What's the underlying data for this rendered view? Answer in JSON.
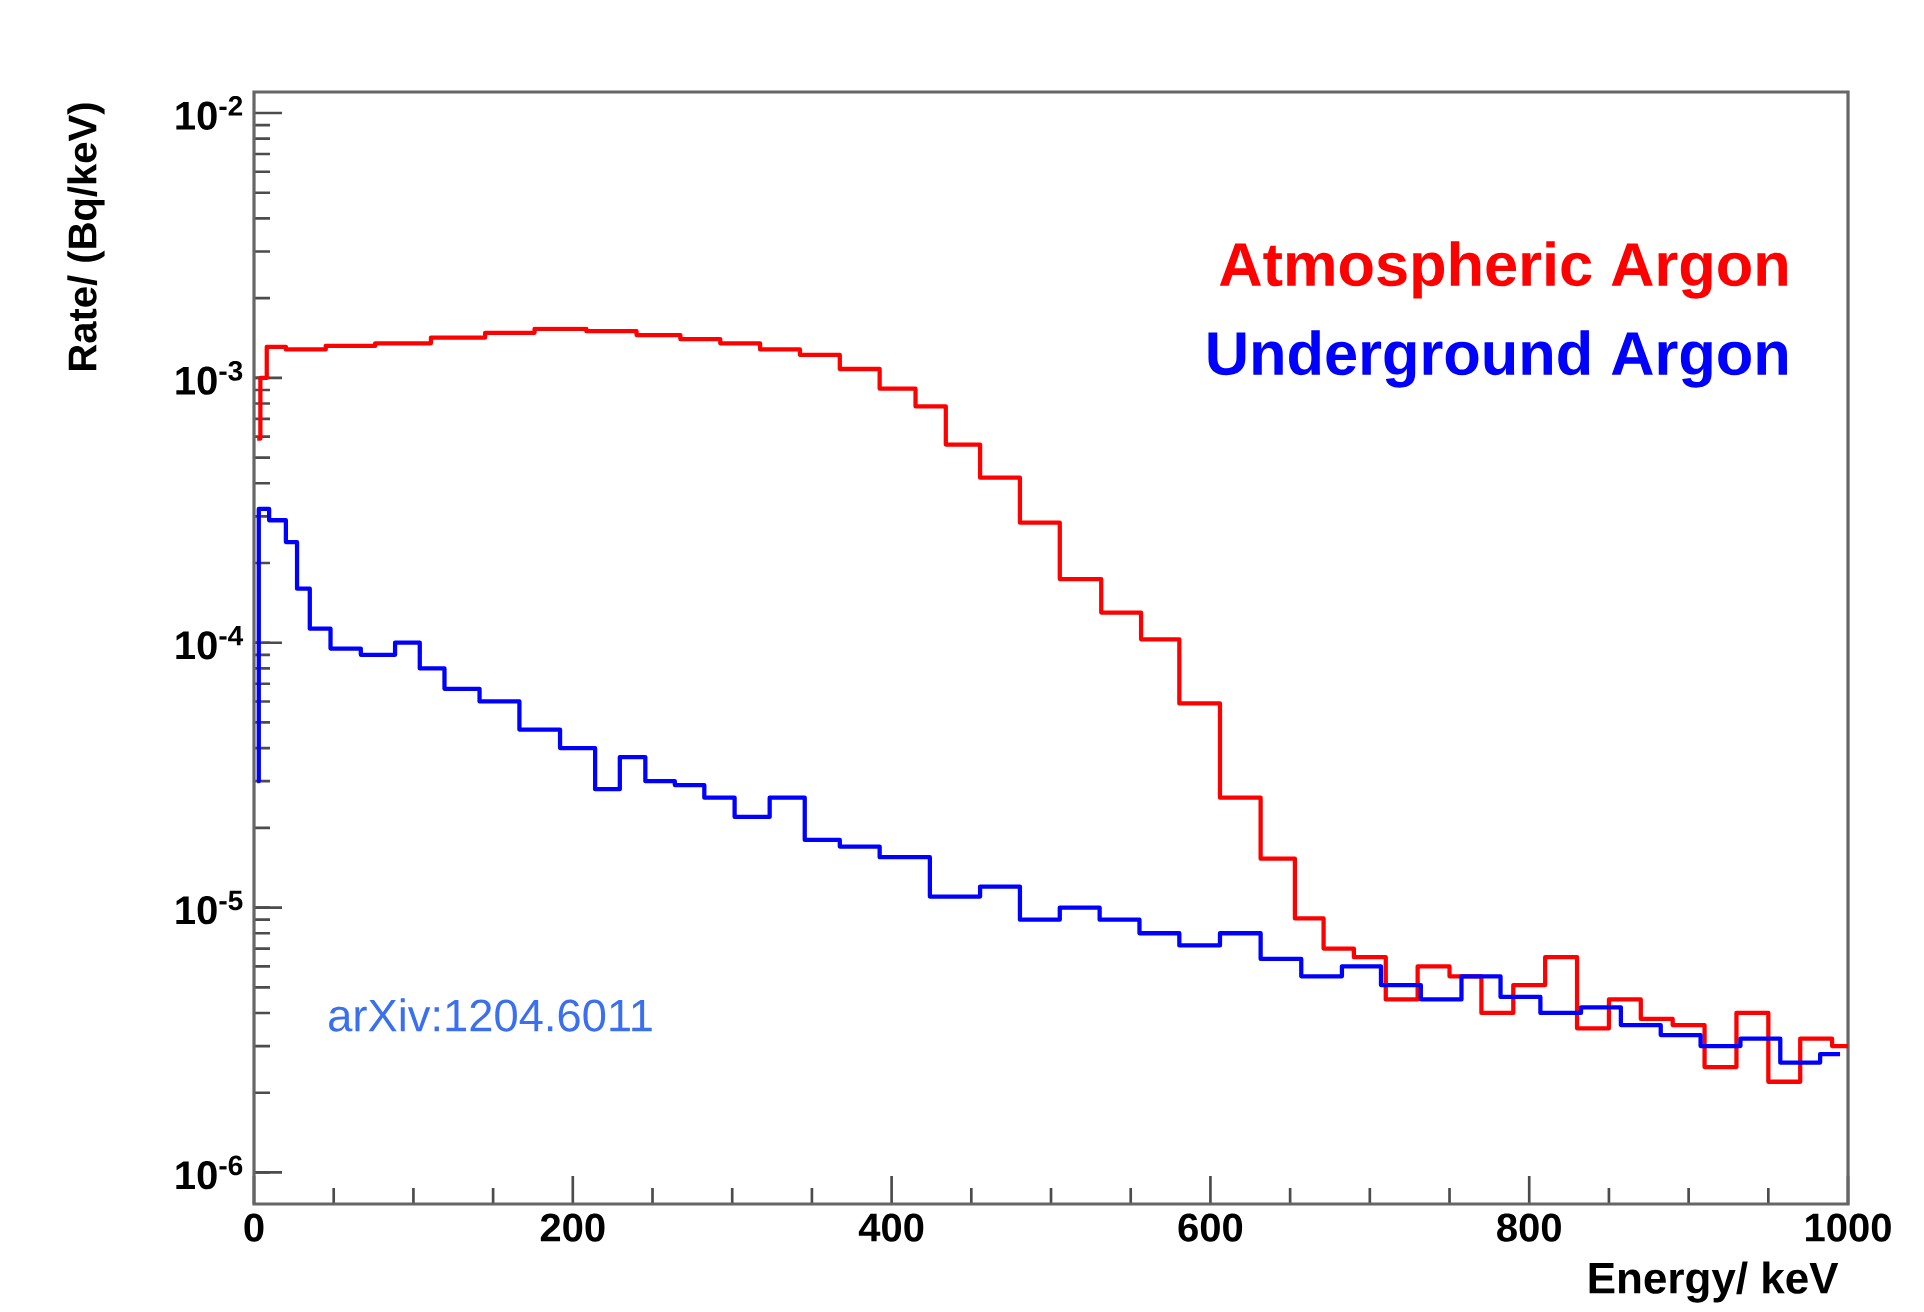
{
  "chart_data": {
    "type": "step",
    "xlabel": "Energy/ keV",
    "ylabel": "Rate/ (Bq/keV)",
    "log": "y",
    "legend": "top right",
    "marker": "none",
    "grid": false,
    "xlim": [
      0,
      1000
    ],
    "ylim": [
      7.6e-07,
      0.012
    ],
    "xticks": [
      0,
      200,
      400,
      600,
      800,
      1000
    ],
    "yticks": [
      {
        "value": 1e-06,
        "label": "10$^{-6}$"
      },
      {
        "value": 1e-05,
        "label": "10$^{-5}$"
      },
      {
        "value": 0.0001,
        "label": "10$^{-4}$"
      },
      {
        "value": 0.001,
        "label": "10$^{-3}$"
      },
      {
        "value": 0.01,
        "label": "10$^{-2}$"
      }
    ],
    "annotations": [
      "arXiv:1204.6011"
    ],
    "series": [
      {
        "name": "Atmospheric Argon",
        "color": "#ff0000",
        "x": [
          2,
          6,
          10,
          30,
          60,
          92,
          130,
          160,
          192,
          225,
          255,
          280,
          305,
          330,
          355,
          380,
          405,
          425,
          443,
          468,
          493,
          518,
          545,
          568,
          593,
          619,
          644,
          662,
          680,
          700,
          720,
          740,
          760,
          780,
          800,
          820,
          840,
          860,
          880,
          900,
          920,
          940,
          960,
          980,
          1000
        ],
        "values": [
          0.00059,
          0.001,
          0.00131,
          0.00128,
          0.00132,
          0.00135,
          0.00142,
          0.00148,
          0.00153,
          0.0015,
          0.00145,
          0.0014,
          0.00135,
          0.00128,
          0.00122,
          0.00108,
          0.00091,
          0.00078,
          0.00056,
          0.00042,
          0.000284,
          0.000174,
          0.00013,
          0.000103,
          5.9e-05,
          2.6e-05,
          1.53e-05,
          9.1e-06,
          7e-06,
          6.5e-06,
          4.5e-06,
          6e-06,
          5.5e-06,
          4e-06,
          5.1e-06,
          6.5e-06,
          3.5e-06,
          4.5e-06,
          3.8e-06,
          3.6e-06,
          2.5e-06,
          4e-06,
          2.2e-06,
          3.2e-06,
          3e-06
        ]
      },
      {
        "name": "Underground Argon",
        "color": "#0000ff",
        "x": [
          2,
          4,
          15,
          25,
          29,
          41,
          55,
          79,
          98,
          110,
          129,
          154,
          179,
          205,
          223,
          236,
          255,
          273,
          292,
          311,
          336,
          355,
          380,
          405,
          443,
          468,
          493,
          518,
          543,
          568,
          593,
          619,
          644,
          670,
          695,
          719,
          745,
          770,
          794,
          820,
          845,
          870,
          895,
          920,
          945,
          970,
          995
        ],
        "values": [
          3e-05,
          0.00032,
          0.00029,
          0.00024,
          0.00016,
          0.000113,
          9.5e-05,
          9e-05,
          0.0001,
          8e-05,
          6.7e-05,
          6e-05,
          4.7e-05,
          4e-05,
          2.8e-05,
          3.7e-05,
          3e-05,
          2.9e-05,
          2.6e-05,
          2.2e-05,
          2.6e-05,
          1.8e-05,
          1.7e-05,
          1.55e-05,
          1.1e-05,
          1.2e-05,
          9e-06,
          1e-05,
          9e-06,
          8e-06,
          7.2e-06,
          8e-06,
          6.4e-06,
          5.5e-06,
          6e-06,
          5.1e-06,
          4.5e-06,
          5.5e-06,
          4.6e-06,
          4e-06,
          4.2e-06,
          3.6e-06,
          3.3e-06,
          3e-06,
          3.2e-06,
          2.6e-06,
          2.8e-06
        ]
      }
    ]
  }
}
